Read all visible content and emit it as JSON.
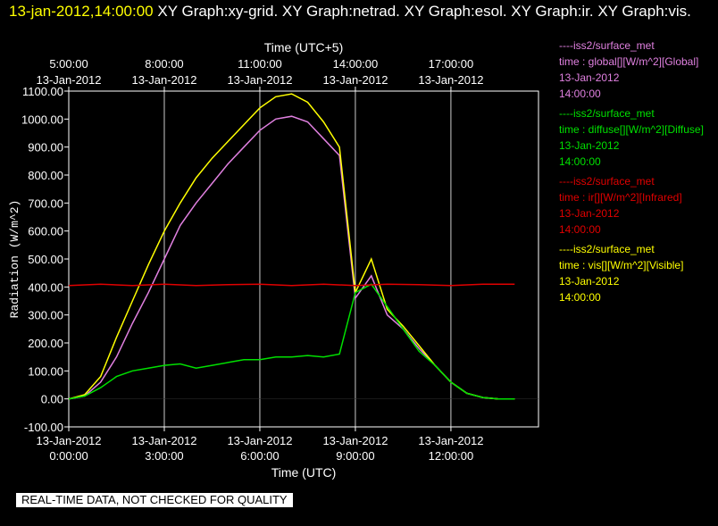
{
  "header": {
    "timestamp": "13-jan-2012,14:00:00",
    "graphs": "XY Graph:xy-grid.  XY Graph:netrad.  XY Graph:esol.  XY Graph:ir.  XY Graph:vis."
  },
  "legend": [
    {
      "line": "----iss2/surface_met",
      "desc": "time : global[][W/m^2][Global]",
      "date": "13-Jan-2012",
      "time": "14:00:00",
      "color": "#e080e0"
    },
    {
      "line": "----iss2/surface_met",
      "desc": "time : diffuse[][W/m^2][Diffuse]",
      "date": "13-Jan-2012",
      "time": "14:00:00",
      "color": "#00e000"
    },
    {
      "line": "----iss2/surface_met",
      "desc": "time : ir[][W/m^2][Infrared]",
      "date": "13-Jan-2012",
      "time": "14:00:00",
      "color": "#e00000"
    },
    {
      "line": "----iss2/surface_met",
      "desc": "time : vis[][W/m^2][Visible]",
      "date": "13-Jan-2012",
      "time": "14:00:00",
      "color": "#ffff00"
    }
  ],
  "quality_note": "REAL-TIME DATA, NOT CHECKED FOR QUALITY",
  "chart_data": {
    "type": "line",
    "ylabel": "Radiation (W/m^2)",
    "xlabel_bottom": "Time (UTC)",
    "xlabel_top": "Time (UTC+5)",
    "ylim": [
      -100,
      1100
    ],
    "xlim_hours": [
      0,
      14.75
    ],
    "grid": true,
    "y_ticks": [
      "-100.00",
      "0.00",
      "100.00",
      "200.00",
      "300.00",
      "400.00",
      "500.00",
      "600.00",
      "700.00",
      "800.00",
      "900.00",
      "1000.00",
      "1100.00"
    ],
    "bottom_ticks": [
      {
        "hour": 0,
        "date": "13-Jan-2012",
        "time": "0:00:00"
      },
      {
        "hour": 3,
        "date": "13-Jan-2012",
        "time": "3:00:00"
      },
      {
        "hour": 6,
        "date": "13-Jan-2012",
        "time": "6:00:00"
      },
      {
        "hour": 9,
        "date": "13-Jan-2012",
        "time": "9:00:00"
      },
      {
        "hour": 12,
        "date": "13-Jan-2012",
        "time": "12:00:00"
      }
    ],
    "top_ticks": [
      {
        "hour": 0,
        "date": "13-Jan-2012",
        "time": "5:00:00"
      },
      {
        "hour": 3,
        "date": "13-Jan-2012",
        "time": "8:00:00"
      },
      {
        "hour": 6,
        "date": "13-Jan-2012",
        "time": "11:00:00"
      },
      {
        "hour": 9,
        "date": "13-Jan-2012",
        "time": "14:00:00"
      },
      {
        "hour": 12,
        "date": "13-Jan-2012",
        "time": "17:00:00"
      }
    ],
    "series": [
      {
        "name": "global",
        "color": "#e080e0",
        "x": [
          0,
          0.5,
          1,
          1.5,
          2,
          2.5,
          3,
          3.5,
          4,
          4.5,
          5,
          5.5,
          6,
          6.5,
          7,
          7.5,
          8,
          8.5,
          9,
          9.5,
          10,
          10.5,
          11,
          11.5,
          12,
          12.5,
          13,
          13.5,
          14
        ],
        "y": [
          0,
          10,
          60,
          150,
          270,
          380,
          500,
          620,
          700,
          770,
          840,
          900,
          960,
          1000,
          1010,
          990,
          930,
          870,
          360,
          440,
          300,
          250,
          180,
          120,
          60,
          20,
          5,
          0,
          0
        ]
      },
      {
        "name": "vis",
        "color": "#ffff00",
        "x": [
          0,
          0.5,
          1,
          1.5,
          2,
          2.5,
          3,
          3.5,
          4,
          4.5,
          5,
          5.5,
          6,
          6.5,
          7,
          7.5,
          8,
          8.5,
          9,
          9.5,
          10,
          10.5,
          11,
          11.5,
          12,
          12.5,
          13,
          13.5,
          14
        ],
        "y": [
          0,
          15,
          80,
          220,
          350,
          480,
          600,
          700,
          790,
          860,
          920,
          980,
          1040,
          1080,
          1090,
          1060,
          990,
          900,
          380,
          500,
          320,
          260,
          190,
          120,
          60,
          20,
          5,
          0,
          0
        ]
      },
      {
        "name": "diffuse",
        "color": "#00e000",
        "x": [
          0,
          0.5,
          1,
          1.5,
          2,
          2.5,
          3,
          3.5,
          4,
          4.5,
          5,
          5.5,
          6,
          6.5,
          7,
          7.5,
          8,
          8.5,
          9,
          9.5,
          10,
          10.5,
          11,
          11.5,
          12,
          12.5,
          13,
          13.5,
          14
        ],
        "y": [
          0,
          10,
          40,
          80,
          100,
          110,
          120,
          125,
          110,
          120,
          130,
          140,
          140,
          150,
          150,
          155,
          150,
          160,
          380,
          410,
          330,
          250,
          170,
          120,
          60,
          20,
          5,
          0,
          0
        ]
      },
      {
        "name": "ir",
        "color": "#e00000",
        "x": [
          0,
          1,
          2,
          3,
          4,
          5,
          6,
          7,
          8,
          9,
          10,
          11,
          12,
          13,
          14
        ],
        "y": [
          405,
          410,
          405,
          410,
          405,
          408,
          410,
          405,
          410,
          405,
          410,
          408,
          405,
          410,
          410
        ]
      }
    ]
  }
}
